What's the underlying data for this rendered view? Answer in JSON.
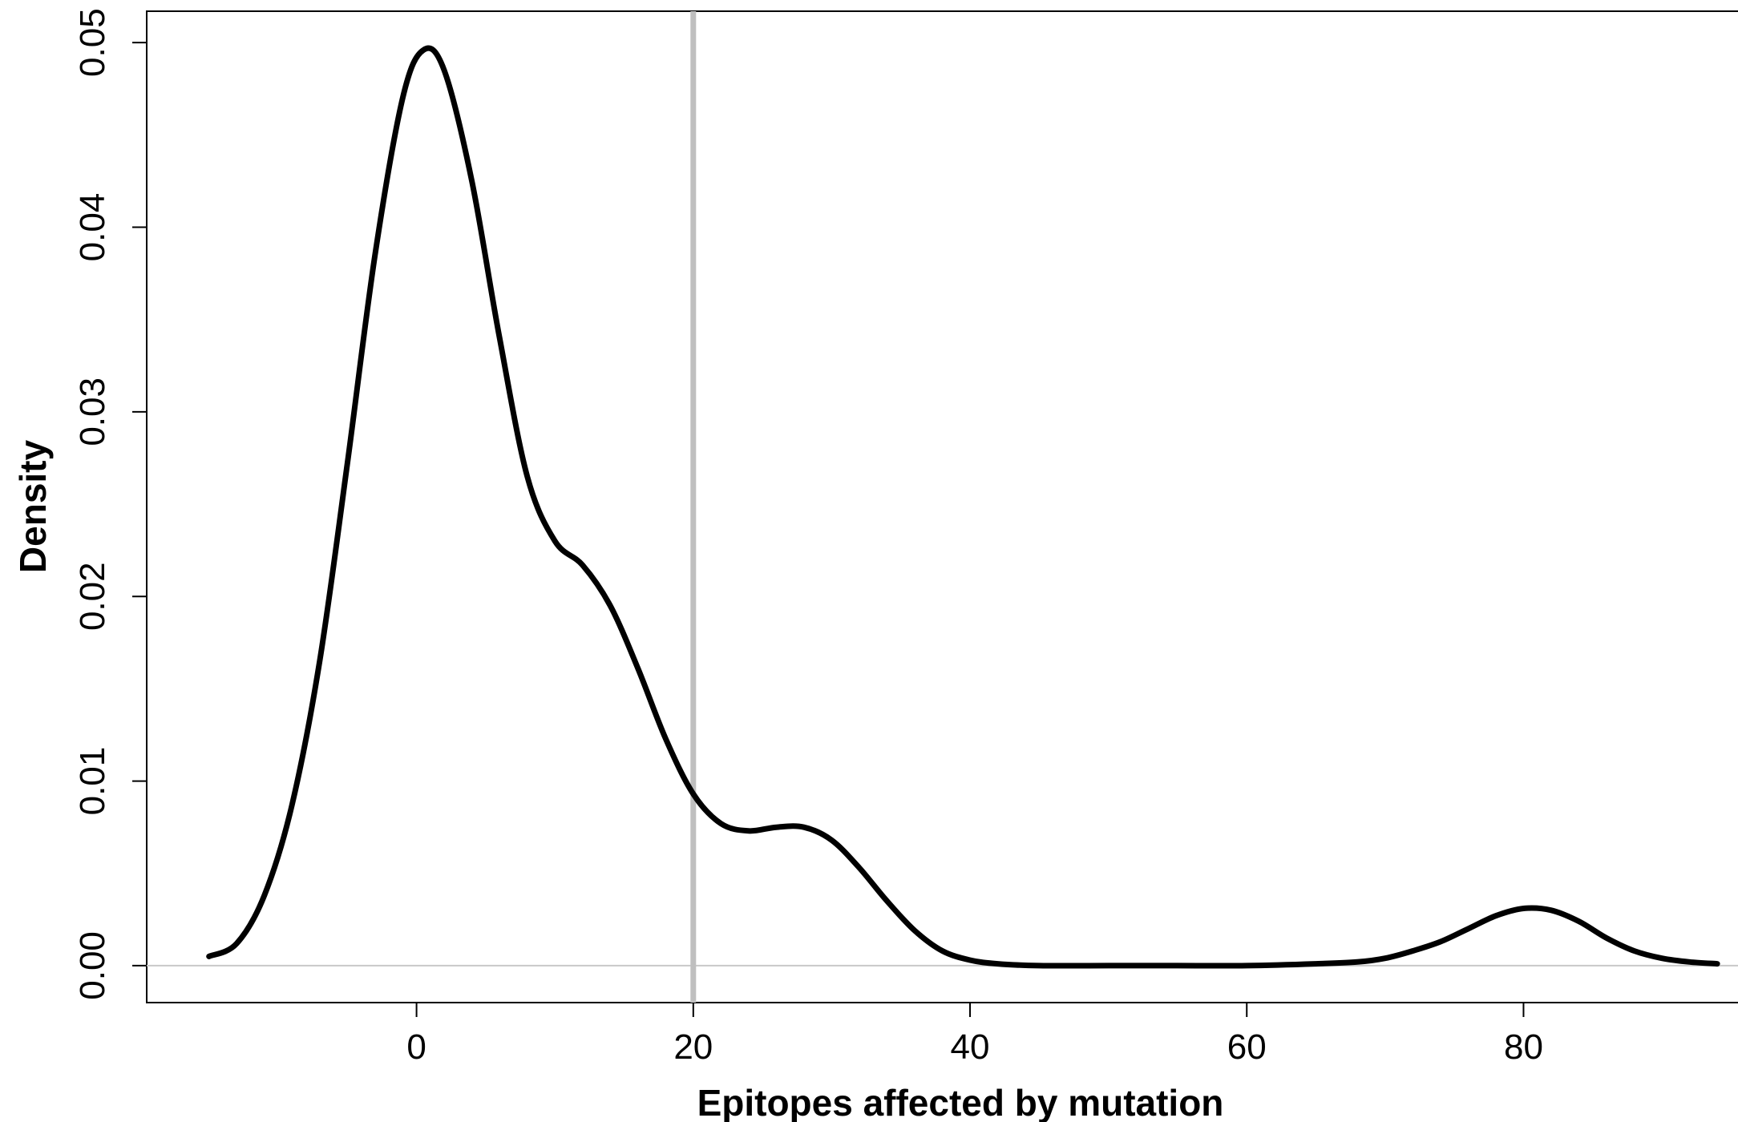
{
  "chart_data": {
    "type": "line",
    "title": "",
    "xlabel": "Epitopes affected by mutation",
    "ylabel": "Density",
    "xlim": [
      -19.5,
      95.5
    ],
    "ylim": [
      -0.002,
      0.0517
    ],
    "x_ticks": [
      0,
      20,
      40,
      60,
      80
    ],
    "x_tick_labels": [
      "0",
      "20",
      "40",
      "60",
      "80"
    ],
    "y_ticks": [
      0.0,
      0.01,
      0.02,
      0.03,
      0.04,
      0.05
    ],
    "y_tick_labels": [
      "0.00",
      "0.01",
      "0.02",
      "0.03",
      "0.04",
      "0.05"
    ],
    "grid": false,
    "colors": {
      "curve": "#000000",
      "reference_line": "#bfbfbf",
      "baseline": "#c8c8c8"
    },
    "reference_lines": [
      {
        "orientation": "vertical",
        "x": 20
      }
    ],
    "baseline": 0,
    "series": [
      {
        "x": [
          -15,
          -13,
          -11,
          -9,
          -7,
          -5,
          -3,
          -1,
          0.5,
          2,
          4,
          6,
          8,
          10,
          12,
          14,
          16,
          18,
          20,
          22,
          24,
          26,
          28,
          30,
          32,
          34,
          36,
          38,
          40,
          42,
          45,
          50,
          55,
          60,
          65,
          68,
          70,
          72,
          74,
          76,
          78,
          80,
          82,
          84,
          86,
          88,
          90,
          92,
          94
        ],
        "values": [
          0.0005,
          0.0012,
          0.0038,
          0.0087,
          0.0165,
          0.0272,
          0.0385,
          0.047,
          0.0496,
          0.0485,
          0.0425,
          0.034,
          0.0265,
          0.023,
          0.0217,
          0.0195,
          0.0161,
          0.0123,
          0.0093,
          0.0077,
          0.0073,
          0.0075,
          0.0075,
          0.0068,
          0.0053,
          0.0035,
          0.0019,
          0.0008,
          0.0003,
          0.0001,
          0.0,
          0.0,
          0.0,
          0.0,
          0.0001,
          0.0002,
          0.0004,
          0.0008,
          0.0013,
          0.002,
          0.0027,
          0.0031,
          0.003,
          0.0024,
          0.0015,
          0.0008,
          0.0004,
          0.0002,
          0.0001
        ]
      }
    ]
  }
}
